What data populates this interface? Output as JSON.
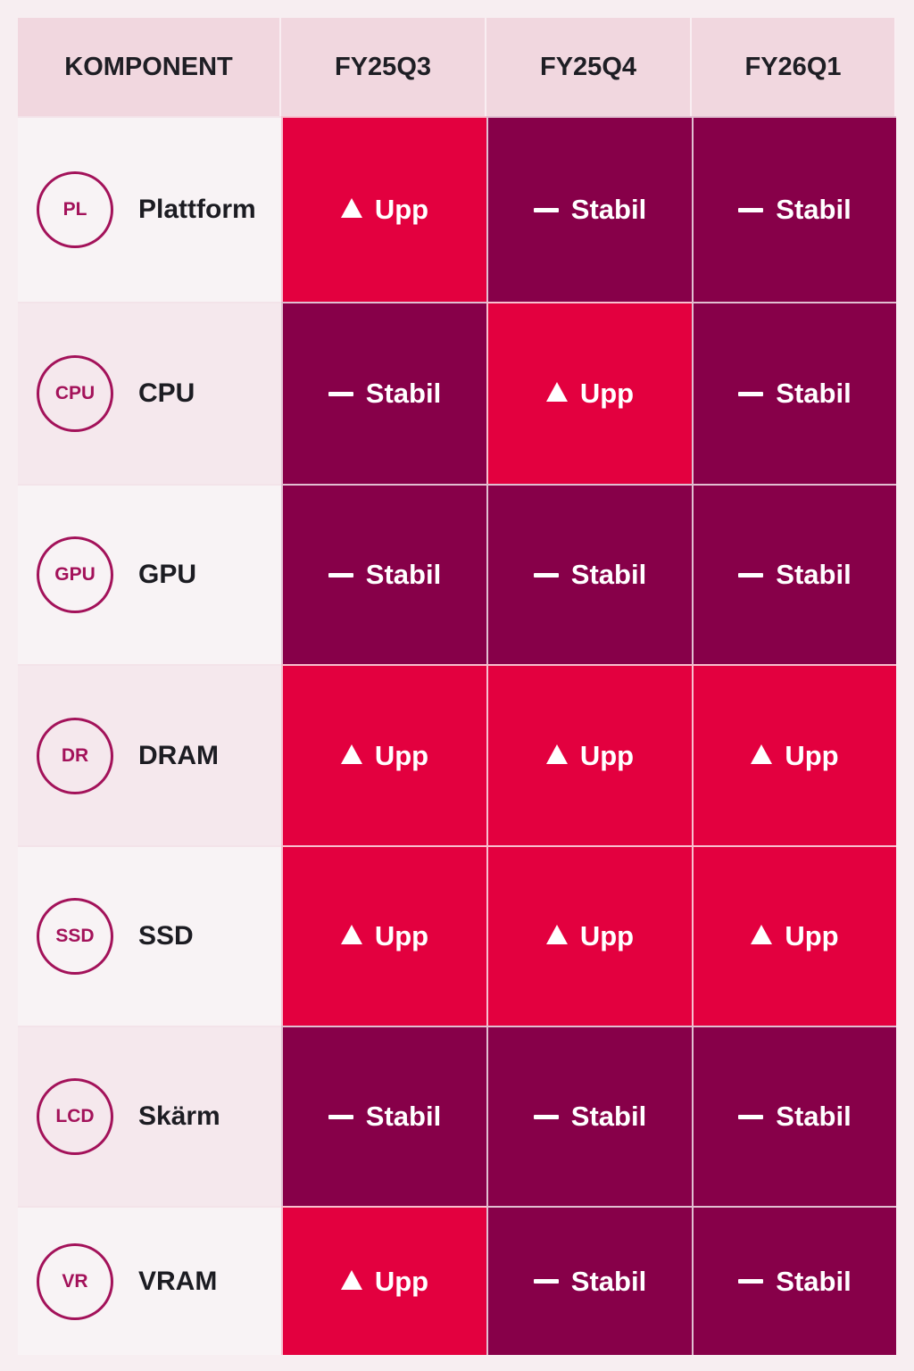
{
  "chart_data": {
    "type": "heatmap",
    "header": {
      "component": "KOMPONENT",
      "periods": [
        "FY25Q3",
        "FY25Q4",
        "FY26Q1"
      ]
    },
    "legend_values": {
      "up": "Upp",
      "stable": "Stabil"
    },
    "colors": {
      "up": "#e3003f",
      "stable": "#870049",
      "badge": "#a3125a"
    },
    "rows": [
      {
        "abbr": "PL",
        "name": "Plattform",
        "values": [
          "Upp",
          "Stabil",
          "Stabil"
        ]
      },
      {
        "abbr": "CPU",
        "name": "CPU",
        "values": [
          "Stabil",
          "Upp",
          "Stabil"
        ]
      },
      {
        "abbr": "GPU",
        "name": "GPU",
        "values": [
          "Stabil",
          "Stabil",
          "Stabil"
        ]
      },
      {
        "abbr": "DR",
        "name": "DRAM",
        "values": [
          "Upp",
          "Upp",
          "Upp"
        ]
      },
      {
        "abbr": "SSD",
        "name": "SSD",
        "values": [
          "Upp",
          "Upp",
          "Upp"
        ]
      },
      {
        "abbr": "LCD",
        "name": "Skärm",
        "values": [
          "Stabil",
          "Stabil",
          "Stabil"
        ]
      },
      {
        "abbr": "VR",
        "name": "VRAM",
        "values": [
          "Upp",
          "Stabil",
          "Stabil"
        ]
      }
    ]
  }
}
